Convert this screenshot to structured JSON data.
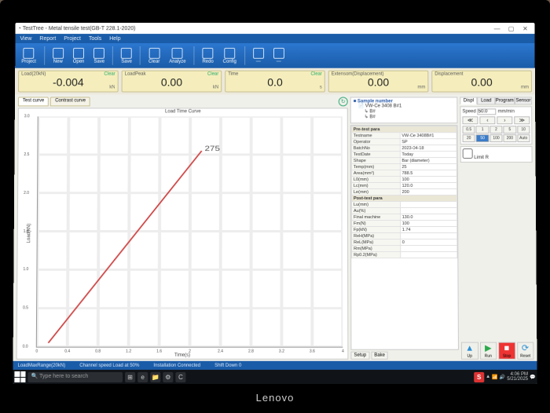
{
  "window": {
    "title": "TestTree - Metal tensile test(GB-T 228.1-2020)"
  },
  "menubar": [
    "View",
    "Report",
    "Project",
    "Tools",
    "Help"
  ],
  "ribbon": [
    "Project",
    "New",
    "Open",
    "Save",
    "Save",
    "Clear",
    "Analyze",
    "Redo",
    "Config",
    "—",
    "—"
  ],
  "readouts": [
    {
      "label": "Load(20kN)",
      "value": "-0.004",
      "unit": "kN",
      "clear": "Clear"
    },
    {
      "label": "LoadPeak",
      "value": "0.00",
      "unit": "kN",
      "clear": "Clear"
    },
    {
      "label": "Time",
      "value": "0.0",
      "unit": "s",
      "clear": "Clear"
    },
    {
      "label": "Extensom(Displacement)",
      "value": "0.00",
      "unit": "mm",
      "clear": ""
    },
    {
      "label": "Displacement",
      "value": "0.00",
      "unit": "mm",
      "clear": ""
    }
  ],
  "tabs": {
    "a": "Test curve",
    "b": "Contrast curve"
  },
  "chart": {
    "title": "Load Time Curve",
    "xlabel": "Time(s)",
    "ylabel": "Load(kN)",
    "xlim": [
      0,
      4
    ],
    "ylim": [
      0,
      3
    ],
    "xticks": [
      0,
      0.4,
      0.8,
      1.2,
      1.6,
      2,
      2.4,
      2.8,
      3.2,
      3.6,
      4
    ],
    "yticks": [
      0,
      0.5,
      1.0,
      1.5,
      2.0,
      2.5,
      3.0
    ],
    "series": [
      [
        0.15,
        0.05
      ],
      [
        2.15,
        2.55
      ]
    ],
    "ann": "275",
    "color": "#d04848",
    "bg": "#ffffff",
    "grid": "#ededed"
  },
  "sample": {
    "header": "Sample number",
    "root": "VW-Ce 3408 B#1",
    "children": [
      "B#",
      "B#"
    ]
  },
  "props": {
    "sections": [
      {
        "name": "Pre-test para",
        "rows": [
          [
            "Testname",
            "VW-Ce 3408B#1"
          ],
          [
            "Operator",
            "SP"
          ],
          [
            "BatchNo",
            "2023-04-18"
          ],
          [
            "TestDate",
            "Today"
          ],
          [
            "Shape",
            "Bar (diameter)"
          ],
          [
            "Temp(mm)",
            "25"
          ],
          [
            "Area(mm²)",
            "788.5"
          ],
          [
            "L0(mm)",
            "100"
          ],
          [
            "Lc(mm)",
            "120.0"
          ],
          [
            "Le(mm)",
            "200"
          ]
        ]
      },
      {
        "name": "Post-test para",
        "rows": [
          [
            "Lu(mm)",
            ""
          ],
          [
            "Au(%)",
            ""
          ],
          [
            "Final machine",
            "130.0"
          ],
          [
            "Fm(N)",
            "100"
          ],
          [
            "Fp(kN)",
            "1.74"
          ],
          [
            "ReH(MPa)",
            ""
          ],
          [
            "ReL(MPa)",
            "0"
          ],
          [
            "Rm(MPa)",
            ""
          ],
          [
            "Rp0.2(MPa)",
            ""
          ]
        ]
      }
    ],
    "footer": {
      "a": "Setup",
      "b": "Bake"
    }
  },
  "ctrl": {
    "tabs": [
      "Displ",
      "Load",
      "Program",
      "Sensor"
    ],
    "speed_label": "Speed",
    "speed_val": "50.0",
    "speed_unit": "mm/min",
    "presets": [
      "0.5",
      "1",
      "2",
      "5",
      "10",
      "20",
      "50",
      "100",
      "200",
      "Auto"
    ],
    "selected": 6,
    "limit": "Limit R",
    "run": {
      "up": "Up",
      "run": "Run",
      "stop": "Stop",
      "down": "Reset"
    }
  },
  "status": {
    "a": "LoadMaxRange(20kN)",
    "b": "Channel speed Load at 50%",
    "c": "Installation Connected",
    "d": "Shift Down 0"
  },
  "taskbar": {
    "search": "Type here to search",
    "clock_time": "4:06 PM",
    "clock_date": "5/21/2025"
  }
}
